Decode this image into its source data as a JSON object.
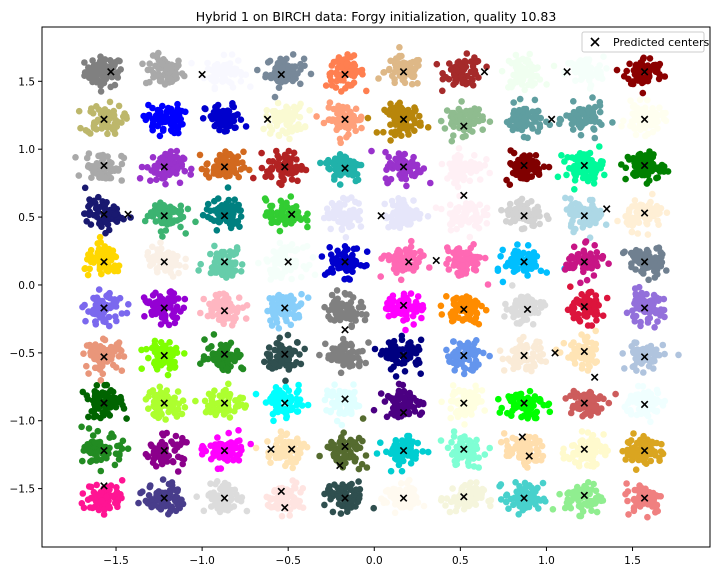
{
  "chart_data": {
    "type": "scatter",
    "title": "Hybrid 1 on BIRCH data: Forgy initialization, quality 10.83",
    "xlabel": "",
    "ylabel": "",
    "xlim": [
      -1.93,
      1.95
    ],
    "ylim": [
      -1.93,
      1.9
    ],
    "xticks": [
      -1.5,
      -1.0,
      -0.5,
      0.0,
      0.5,
      1.0,
      1.5
    ],
    "xtick_labels": [
      "−1.5",
      "−1.0",
      "−0.5",
      "0.0",
      "0.5",
      "1.0",
      "1.5"
    ],
    "yticks": [
      -1.5,
      -1.0,
      -0.5,
      0.0,
      0.5,
      1.0,
      1.5
    ],
    "ytick_labels": [
      "−1.5",
      "−1.0",
      "−0.5",
      "0.0",
      "0.5",
      "1.0",
      "1.5"
    ],
    "grid": false,
    "legend": {
      "position": "top-right",
      "entries": [
        "Predicted centers"
      ]
    },
    "cluster_grid": {
      "centers_x": [
        -1.57,
        -1.22,
        -0.87,
        -0.52,
        -0.17,
        0.17,
        0.52,
        0.87,
        1.22,
        1.57
      ],
      "centers_y": [
        1.57,
        1.22,
        0.87,
        0.52,
        0.17,
        -0.17,
        -0.52,
        -0.87,
        -1.22,
        -1.57
      ],
      "spread": 0.055
    },
    "cluster_colors": [
      [
        "#808080",
        "#a9a9a9",
        "#f8f8ff",
        "#778899",
        "#ff7f50",
        "#deb887",
        "#a52a2a",
        "#f0fff0",
        "#f5fffa",
        "#8b0000"
      ],
      [
        "#bdb76b",
        "#0000ff",
        "#0000cd",
        "#fafad2",
        "#ffa07a",
        "#b8860b",
        "#8fbc8f",
        "#5f9ea0",
        "#5f9ea0",
        "#fffff0"
      ],
      [
        "#a9a9a9",
        "#9932cc",
        "#d2691e",
        "#b22222",
        "#20b2aa",
        "#9932cc",
        "#fff0f5",
        "#800000",
        "#00fa9a",
        "#008000"
      ],
      [
        "#191970",
        "#3cb371",
        "#008080",
        "#32cd32",
        "#e6e6fa",
        "#e6e6fa",
        "#fff0f5",
        "#d3d3d3",
        "#add8e6",
        "#ffefd5"
      ],
      [
        "#ffd700",
        "#faf0e6",
        "#66cdaa",
        "#f5fffa",
        "#0000cd",
        "#ff69b4",
        "#ff69b4",
        "#00bfff",
        "#c71585",
        "#708090"
      ],
      [
        "#7b68ee",
        "#9400d3",
        "#ffb6c1",
        "#87cefa",
        "#808080",
        "#ff00ff",
        "#ff8c00",
        "#dcdcdc",
        "#dc143c",
        "#9370db"
      ],
      [
        "#e9967a",
        "#7fff00",
        "#228b22",
        "#2f4f4f",
        "#808080",
        "#000080",
        "#6495ed",
        "#faebd7",
        "#ffe4b5",
        "#b0c4de"
      ],
      [
        "#006400",
        "#adff2f",
        "#adff2f",
        "#00ffff",
        "#e0ffff",
        "#4b0082",
        "#ffffe0",
        "#00ff00",
        "#cd5c5c",
        "#f0ffff"
      ],
      [
        "#228b22",
        "#8b008b",
        "#ff00ff",
        "#ffe4b5",
        "#556b2f",
        "#00ced1",
        "#7fffd4",
        "#ffdead",
        "#fffacd",
        "#daa520"
      ],
      [
        "#ff1493",
        "#483d8b",
        "#dcdcdc",
        "#ffe4e1",
        "#2f4f4f",
        "#fffaf0",
        "#f5f5dc",
        "#48d1cc",
        "#90ee90",
        "#f08080"
      ]
    ],
    "predicted_centers": [
      [
        -1.53,
        1.57
      ],
      [
        -1.0,
        1.55
      ],
      [
        -0.54,
        1.55
      ],
      [
        -0.17,
        1.55
      ],
      [
        0.17,
        1.57
      ],
      [
        0.64,
        1.57
      ],
      [
        1.12,
        1.57
      ],
      [
        1.57,
        1.57
      ],
      [
        -1.57,
        1.22
      ],
      [
        -0.62,
        1.22
      ],
      [
        -0.17,
        1.22
      ],
      [
        0.17,
        1.22
      ],
      [
        0.52,
        1.17
      ],
      [
        1.03,
        1.22
      ],
      [
        1.57,
        1.22
      ],
      [
        -1.57,
        0.88
      ],
      [
        -1.22,
        0.87
      ],
      [
        -0.87,
        0.87
      ],
      [
        -0.52,
        0.87
      ],
      [
        -0.17,
        0.86
      ],
      [
        0.17,
        0.87
      ],
      [
        0.87,
        0.88
      ],
      [
        1.22,
        0.88
      ],
      [
        1.57,
        0.88
      ],
      [
        0.52,
        0.66
      ],
      [
        -1.57,
        0.52
      ],
      [
        -1.43,
        0.52
      ],
      [
        -1.22,
        0.51
      ],
      [
        -0.87,
        0.51
      ],
      [
        -0.48,
        0.52
      ],
      [
        0.04,
        0.51
      ],
      [
        0.87,
        0.51
      ],
      [
        1.22,
        0.51
      ],
      [
        1.35,
        0.56
      ],
      [
        1.57,
        0.53
      ],
      [
        -1.57,
        0.17
      ],
      [
        -1.22,
        0.17
      ],
      [
        -0.87,
        0.17
      ],
      [
        -0.5,
        0.17
      ],
      [
        -0.17,
        0.17
      ],
      [
        0.2,
        0.17
      ],
      [
        0.36,
        0.18
      ],
      [
        0.87,
        0.17
      ],
      [
        1.22,
        0.17
      ],
      [
        1.57,
        0.17
      ],
      [
        -1.57,
        -0.17
      ],
      [
        -1.22,
        -0.17
      ],
      [
        -0.87,
        -0.19
      ],
      [
        -0.52,
        -0.17
      ],
      [
        -0.17,
        -0.33
      ],
      [
        0.17,
        -0.15
      ],
      [
        0.52,
        -0.18
      ],
      [
        0.89,
        -0.18
      ],
      [
        1.22,
        -0.16
      ],
      [
        1.57,
        -0.17
      ],
      [
        -1.57,
        -0.53
      ],
      [
        -1.22,
        -0.52
      ],
      [
        -0.87,
        -0.51
      ],
      [
        -0.52,
        -0.51
      ],
      [
        0.17,
        -0.52
      ],
      [
        0.52,
        -0.52
      ],
      [
        0.87,
        -0.52
      ],
      [
        1.05,
        -0.5
      ],
      [
        1.22,
        -0.49
      ],
      [
        1.57,
        -0.53
      ],
      [
        1.28,
        -0.68
      ],
      [
        -1.57,
        -0.87
      ],
      [
        -1.22,
        -0.87
      ],
      [
        -0.87,
        -0.87
      ],
      [
        -0.52,
        -0.87
      ],
      [
        -0.17,
        -0.84
      ],
      [
        0.17,
        -0.94
      ],
      [
        0.52,
        -0.87
      ],
      [
        0.87,
        -0.87
      ],
      [
        1.22,
        -0.87
      ],
      [
        1.57,
        -0.88
      ],
      [
        -1.57,
        -1.22
      ],
      [
        -1.22,
        -1.22
      ],
      [
        -0.87,
        -1.22
      ],
      [
        -0.6,
        -1.21
      ],
      [
        -0.48,
        -1.21
      ],
      [
        -0.17,
        -1.19
      ],
      [
        -0.2,
        -1.33
      ],
      [
        0.17,
        -1.22
      ],
      [
        0.52,
        -1.21
      ],
      [
        0.86,
        -1.12
      ],
      [
        0.9,
        -1.26
      ],
      [
        1.22,
        -1.21
      ],
      [
        1.57,
        -1.22
      ],
      [
        -1.57,
        -1.48
      ],
      [
        -1.22,
        -1.57
      ],
      [
        -0.87,
        -1.57
      ],
      [
        -0.54,
        -1.52
      ],
      [
        -0.52,
        -1.64
      ],
      [
        -0.17,
        -1.57
      ],
      [
        0.17,
        -1.57
      ],
      [
        0.52,
        -1.56
      ],
      [
        0.87,
        -1.57
      ],
      [
        1.22,
        -1.55
      ],
      [
        1.57,
        -1.57
      ]
    ]
  }
}
